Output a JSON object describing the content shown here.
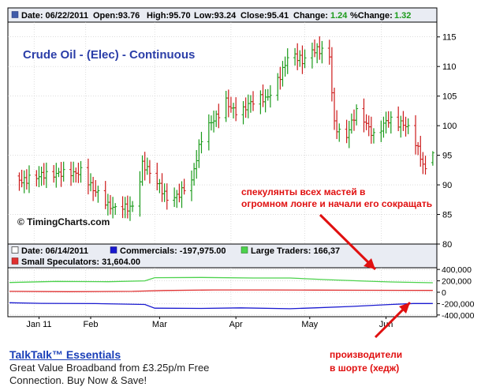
{
  "colors": {
    "up_bar": "#1a9a1a",
    "down_bar": "#cc1a1a",
    "commercials": "#1a1ad0",
    "large_traders": "#4cd24c",
    "small_speculators": "#e03030",
    "title": "#2b3ea8",
    "annotation": "#e01010",
    "arrow": "#e01010",
    "grid": "#c8c8c8",
    "frame": "#000000",
    "header_bg": "#e9ecf3",
    "ad_link": "#1a3fb8"
  },
  "price_panel": {
    "header": {
      "date_label": "Date: 06/22/2011",
      "open_label": "Open:93.76",
      "high_label": "High:95.70",
      "low_label": "Low:93.24",
      "close_label": "Close:95.41",
      "change_label": "Change:",
      "change_value": "1.24",
      "pct_change_label": "%Change:",
      "pct_change_value": "1.32"
    },
    "title": "Crude Oil - (Elec) - Continuous",
    "watermark": "© TimingCharts.com",
    "watermark_icon": "copyright-icon"
  },
  "cot_panel": {
    "date_label": "Date: 06/14/2011",
    "commercials_label": "Commercials: -197,975.00",
    "large_traders_label": "Large Traders: 166,37",
    "small_speculators_label": "Small Speculators: 31,604.00"
  },
  "annotations": {
    "speculators_line1": "спекулянты всех мастей в",
    "speculators_line2": "огромном лонге и начали его сокращать",
    "producers_line1": "производители",
    "producers_line2": "в шорте (хедж)"
  },
  "ad": {
    "title": "TalkTalk™ Essentials",
    "line1": "Great Value Broadband from £3.25p/m Free",
    "line2": "Connection. Buy Now & Save!"
  },
  "chart_data": [
    {
      "type": "ohlc",
      "title": "Crude Oil - (Elec) - Continuous",
      "xlabel": "",
      "ylabel": "",
      "x_tick_labels": [
        "Jan 11",
        "Feb",
        "Mar",
        "Apr",
        "May",
        "Jun"
      ],
      "y_ticks": [
        80,
        85,
        90,
        95,
        100,
        105,
        110,
        115
      ],
      "ylim": [
        80,
        117.5
      ],
      "grid": true,
      "close_points": [
        {
          "date": "2011-01-03",
          "close": 91.5
        },
        {
          "date": "2011-01-10",
          "close": 91.6
        },
        {
          "date": "2011-01-18",
          "close": 90.5
        },
        {
          "date": "2011-01-24",
          "close": 92.9
        },
        {
          "date": "2011-01-31",
          "close": 92.7
        },
        {
          "date": "2011-02-04",
          "close": 88.5
        },
        {
          "date": "2011-02-10",
          "close": 86.0
        },
        {
          "date": "2011-02-16",
          "close": 87.2
        },
        {
          "date": "2011-02-21",
          "close": 86.5
        },
        {
          "date": "2011-02-24",
          "close": 93.0
        },
        {
          "date": "2011-03-01",
          "close": 90.0
        },
        {
          "date": "2011-03-07",
          "close": 88.0
        },
        {
          "date": "2011-03-10",
          "close": 89.0
        },
        {
          "date": "2011-03-16",
          "close": 90.5
        },
        {
          "date": "2011-03-20",
          "close": 97.0
        },
        {
          "date": "2011-03-25",
          "close": 101.0
        },
        {
          "date": "2011-03-30",
          "close": 105.0
        },
        {
          "date": "2011-04-04",
          "close": 102.0
        },
        {
          "date": "2011-04-09",
          "close": 103.0
        },
        {
          "date": "2011-04-15",
          "close": 104.5
        },
        {
          "date": "2011-04-20",
          "close": 108.5
        },
        {
          "date": "2011-04-25",
          "close": 112.5
        },
        {
          "date": "2011-04-30",
          "close": 110.0
        },
        {
          "date": "2011-05-05",
          "close": 112.5
        },
        {
          "date": "2011-05-08",
          "close": 113.5
        },
        {
          "date": "2011-05-11",
          "close": 112.5
        },
        {
          "date": "2011-05-13",
          "close": 101.0
        },
        {
          "date": "2011-05-17",
          "close": 97.0
        },
        {
          "date": "2011-05-22",
          "close": 101.5
        },
        {
          "date": "2011-05-29",
          "close": 99.0
        },
        {
          "date": "2011-06-03",
          "close": 101.5
        },
        {
          "date": "2011-06-08",
          "close": 100.0
        },
        {
          "date": "2011-06-13",
          "close": 98.5
        },
        {
          "date": "2011-06-18",
          "close": 94.0
        },
        {
          "date": "2011-06-20",
          "close": 92.5
        },
        {
          "date": "2011-06-22",
          "close": 95.41
        }
      ]
    },
    {
      "type": "line",
      "title": "",
      "xlabel": "",
      "ylabel": "",
      "y_ticks": [
        400000,
        200000,
        0,
        -200000,
        -400000
      ],
      "y_tick_labels": [
        "400,000",
        "200,000",
        "0",
        "-200,000",
        "-400,000"
      ],
      "ylim": [
        -430000,
        430000
      ],
      "grid": true,
      "legend_placement": "top-left",
      "series": [
        {
          "name": "Commercials",
          "points": [
            {
              "date": "2011-01-01",
              "value": -185000
            },
            {
              "date": "2011-01-14",
              "value": -195000
            },
            {
              "date": "2011-02-05",
              "value": -200000
            },
            {
              "date": "2011-02-25",
              "value": -215000
            },
            {
              "date": "2011-03-01",
              "value": -280000
            },
            {
              "date": "2011-03-20",
              "value": -285000
            },
            {
              "date": "2011-04-05",
              "value": -275000
            },
            {
              "date": "2011-04-25",
              "value": -290000
            },
            {
              "date": "2011-05-05",
              "value": -275000
            },
            {
              "date": "2011-05-20",
              "value": -250000
            },
            {
              "date": "2011-06-05",
              "value": -215000
            },
            {
              "date": "2011-06-14",
              "value": -197975
            },
            {
              "date": "2011-06-22",
              "value": -197975
            }
          ]
        },
        {
          "name": "Large Traders",
          "points": [
            {
              "date": "2011-01-01",
              "value": 170000
            },
            {
              "date": "2011-01-20",
              "value": 190000
            },
            {
              "date": "2011-02-10",
              "value": 185000
            },
            {
              "date": "2011-02-25",
              "value": 200000
            },
            {
              "date": "2011-03-01",
              "value": 255000
            },
            {
              "date": "2011-03-20",
              "value": 260000
            },
            {
              "date": "2011-04-10",
              "value": 250000
            },
            {
              "date": "2011-04-25",
              "value": 250000
            },
            {
              "date": "2011-05-10",
              "value": 220000
            },
            {
              "date": "2011-05-25",
              "value": 195000
            },
            {
              "date": "2011-06-05",
              "value": 180000
            },
            {
              "date": "2011-06-22",
              "value": 166370
            }
          ]
        },
        {
          "name": "Small Speculators",
          "points": [
            {
              "date": "2011-01-01",
              "value": 15000
            },
            {
              "date": "2011-01-25",
              "value": 10000
            },
            {
              "date": "2011-02-20",
              "value": 15000
            },
            {
              "date": "2011-03-05",
              "value": 30000
            },
            {
              "date": "2011-03-25",
              "value": 40000
            },
            {
              "date": "2011-04-15",
              "value": 40000
            },
            {
              "date": "2011-05-05",
              "value": 38000
            },
            {
              "date": "2011-05-25",
              "value": 35000
            },
            {
              "date": "2011-06-22",
              "value": 31604
            }
          ]
        }
      ]
    }
  ]
}
